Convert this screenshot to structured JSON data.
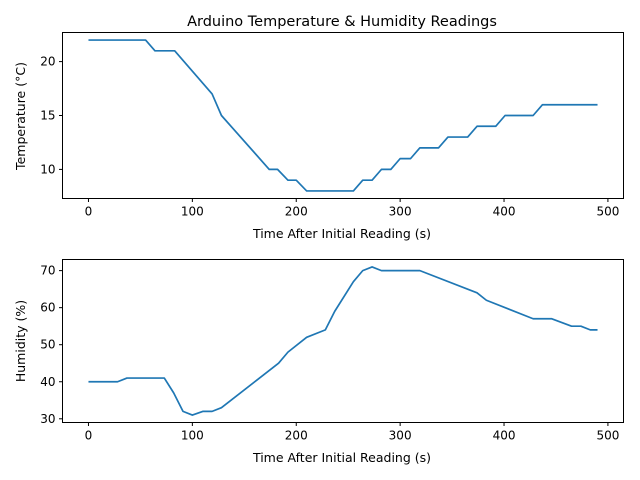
{
  "chart_data": [
    {
      "type": "line",
      "title": "Arduino Temperature & Humidity Readings",
      "xlabel": "Time After Initial Reading (s)",
      "ylabel": "Temperature (°C)",
      "xlim": [
        -25,
        515
      ],
      "ylim": [
        7.3,
        22.7
      ],
      "xticks": [
        0,
        100,
        200,
        300,
        400,
        500
      ],
      "yticks": [
        10,
        15,
        20
      ],
      "grid": false,
      "series": [
        {
          "color": "#1f77b4",
          "x": [
            0,
            55,
            64,
            83,
            119,
            128,
            174,
            182,
            192,
            200,
            210,
            255,
            264,
            273,
            282,
            291,
            300,
            310,
            319,
            328,
            337,
            346,
            356,
            365,
            374,
            383,
            392,
            401,
            410,
            428,
            437,
            446,
            490
          ],
          "y": [
            22,
            22,
            21,
            21,
            17,
            15,
            10,
            10,
            9,
            9,
            8,
            8,
            9,
            9,
            10,
            10,
            11,
            11,
            12,
            12,
            12,
            13,
            13,
            13,
            14,
            14,
            14,
            15,
            15,
            15,
            16,
            16,
            16
          ]
        }
      ]
    },
    {
      "type": "line",
      "title": "",
      "xlabel": "Time After Initial Reading (s)",
      "ylabel": "Humidity (%)",
      "xlim": [
        -25,
        515
      ],
      "ylim": [
        29,
        73
      ],
      "xticks": [
        0,
        100,
        200,
        300,
        400,
        500
      ],
      "yticks": [
        30,
        40,
        50,
        60,
        70
      ],
      "grid": false,
      "series": [
        {
          "color": "#1f77b4",
          "x": [
            0,
            28,
            37,
            73,
            82,
            91,
            100,
            110,
            119,
            128,
            183,
            192,
            210,
            228,
            237,
            255,
            264,
            273,
            282,
            319,
            374,
            383,
            428,
            446,
            465,
            474,
            483,
            490
          ],
          "y": [
            40,
            40,
            41,
            41,
            37,
            32,
            31,
            32,
            32,
            33,
            45,
            48,
            52,
            54,
            59,
            67,
            70,
            71,
            70,
            70,
            64,
            62,
            57,
            57,
            55,
            55,
            54,
            54
          ]
        }
      ]
    }
  ]
}
